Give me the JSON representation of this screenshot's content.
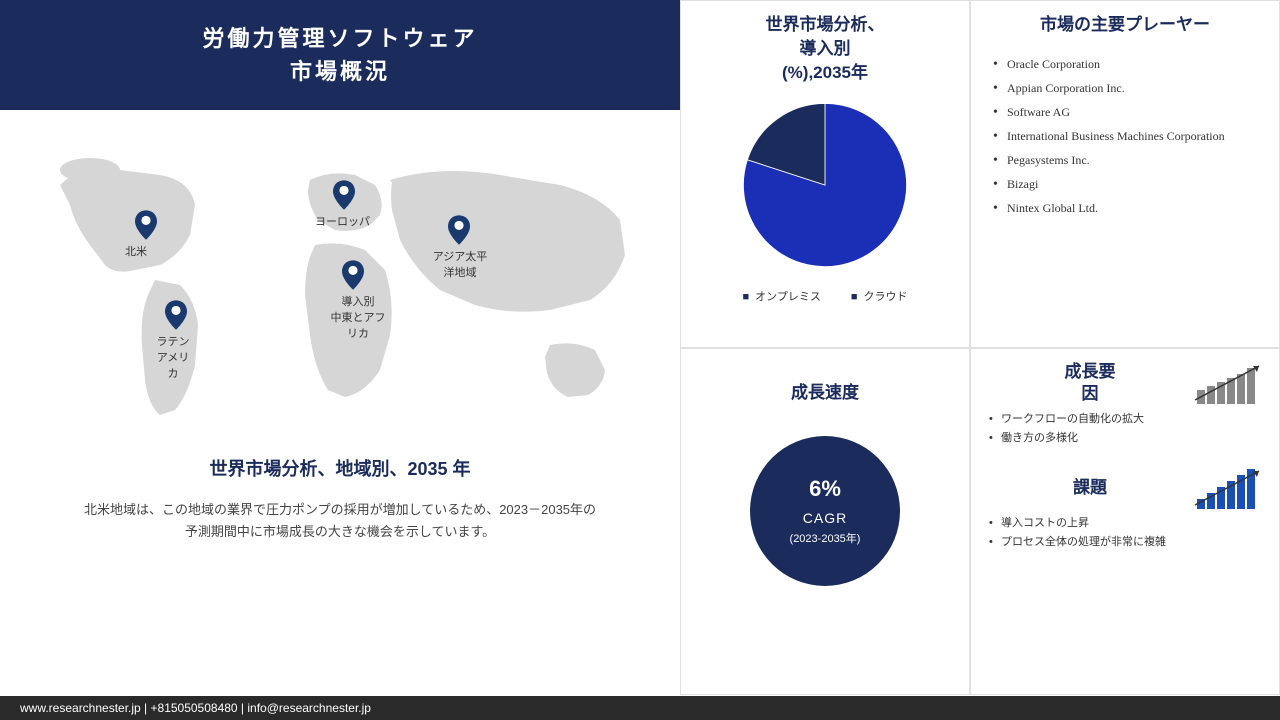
{
  "title": {
    "line1": "労働力管理ソフトウェア",
    "line2": "市場概況"
  },
  "colors": {
    "brand": "#1a2b5c",
    "mapFill": "#d6d6d6",
    "pin": "#1a3a6e"
  },
  "map": {
    "heading": "世界市場分析、地域別、2035 年",
    "desc": "北米地域は、この地域の業界で圧力ポンプの採用が増加しているため、2023－2035年の予測期間中に市場成長の大きな機会を示しています。",
    "labels": {
      "na": "北米",
      "la": "ラテンアメリカ",
      "eu": "ヨーロッパ",
      "mea": "導入別\n中東とアフリカ",
      "apac": "アジア太平洋地域"
    }
  },
  "pie": {
    "title": "世界市場分析、\n導入別\n(%),2035年",
    "slices": [
      {
        "label": "オンプレミス",
        "value": 80,
        "color": "#1a2fb5"
      },
      {
        "label": "クラウド",
        "value": 20,
        "color": "#1a2b5c"
      }
    ]
  },
  "players": {
    "title": "市場の主要プレーヤー",
    "items": [
      "Oracle Corporation",
      "Appian Corporation Inc.",
      "Software AG",
      "International Business Machines Corporation",
      "Pegasystems Inc.",
      "Bizagi",
      "Nintex Global Ltd."
    ]
  },
  "growth": {
    "title": "成長速度",
    "pct": "6%",
    "cagr": "CAGR",
    "years": "(2023-2035年)"
  },
  "factors": {
    "title": "成長要因",
    "items": [
      "ワークフローの自動化の拡大",
      "働き方の多様化"
    ],
    "bars": [
      14,
      18,
      22,
      26,
      30,
      36
    ],
    "barColor": "#888"
  },
  "challenges": {
    "title": "課題",
    "items": [
      "導入コストの上昇",
      "プロセス全体の処理が非常に複雑"
    ],
    "bars": [
      10,
      16,
      22,
      28,
      34,
      40
    ],
    "barColor": "#1a4fb5"
  },
  "footer": "www.researchnester.jp | +815050508480 | info@researchnester.jp"
}
